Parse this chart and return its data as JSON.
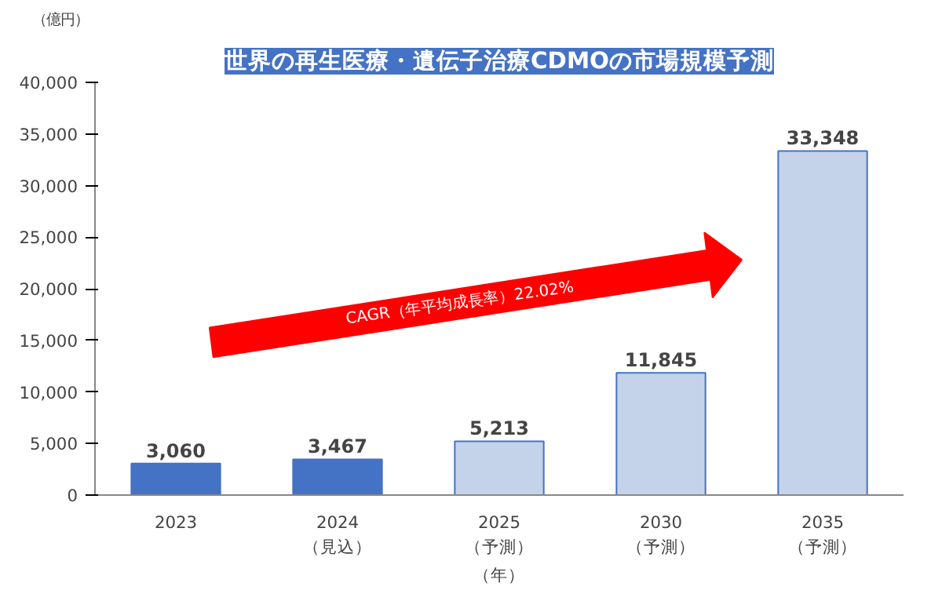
{
  "chart_data": {
    "type": "bar",
    "title": "世界の再生医療・遺伝子治療CDMOの市場規模予測",
    "ylabel": "（億円）",
    "xlabel": "（年）",
    "categories": [
      "2023",
      "2024\n（見込）",
      "2025\n（予測）",
      "2030\n（予測）",
      "2035\n（予測）"
    ],
    "values": [
      3060,
      3467,
      5213,
      11845,
      33348
    ],
    "value_labels": [
      "3,060",
      "3,467",
      "5,213",
      "11,845",
      "33,348"
    ],
    "colors": [
      "#4472c4",
      "#4472c4",
      "#c5d3ea",
      "#c5d3ea",
      "#c5d3ea"
    ],
    "ylim": [
      0,
      40000
    ],
    "yticks": [
      0,
      {
        "value": 5000,
        "label": "5,000"
      },
      {
        "value": 10000,
        "label": "10,000"
      },
      {
        "value": 15000,
        "label": "15,000"
      },
      {
        "value": 20000,
        "label": "20,000"
      },
      {
        "value": 25000,
        "label": "25,000"
      },
      {
        "value": 30000,
        "label": "30,000"
      },
      {
        "value": 35000,
        "label": "35,000"
      },
      {
        "value": 40000,
        "label": "40,000"
      }
    ],
    "grid": false,
    "annotations": [
      "CAGR（年平均成長率）22.02%"
    ]
  }
}
